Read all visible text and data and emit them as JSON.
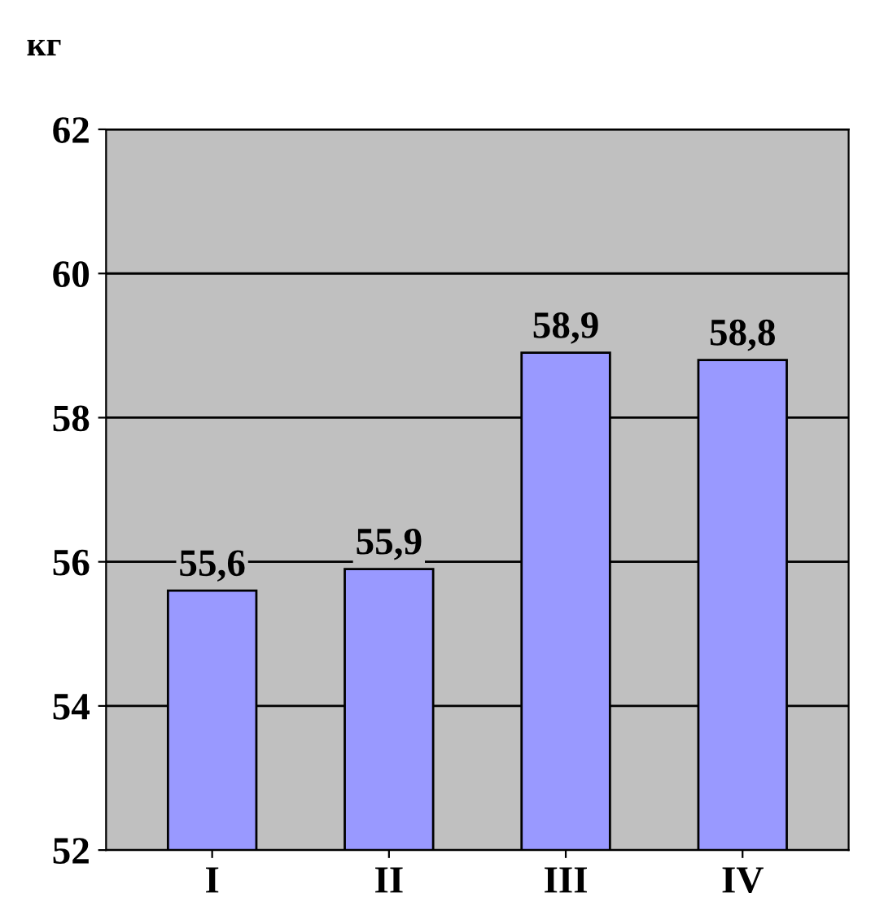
{
  "chart_data": {
    "type": "bar",
    "ylabel": "кг",
    "categories": [
      "I",
      "II",
      "III",
      "IV"
    ],
    "values": [
      55.6,
      55.9,
      58.9,
      58.8
    ],
    "value_labels": [
      "55,6",
      "55,9",
      "58,9",
      "58,8"
    ],
    "color": "#9999ff",
    "ylim": [
      52,
      62
    ],
    "yticks": [
      52,
      54,
      56,
      58,
      60,
      62
    ],
    "grid": "y"
  }
}
